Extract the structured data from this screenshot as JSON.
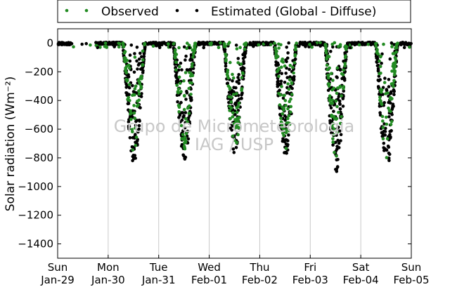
{
  "chart_data": {
    "type": "scatter",
    "title": "",
    "ylabel": "Solar radiation (Wm⁻²)",
    "xlabel": "",
    "ylim": [
      -1500,
      100
    ],
    "yticks": [
      0,
      -200,
      -400,
      -600,
      -800,
      -1000,
      -1200,
      -1400
    ],
    "xlim": [
      "Jan-29",
      "Feb-05"
    ],
    "x_ticks": [
      {
        "day": "Sun",
        "date": "Jan-29"
      },
      {
        "day": "Mon",
        "date": "Jan-30"
      },
      {
        "day": "Tue",
        "date": "Jan-31"
      },
      {
        "day": "Wed",
        "date": "Feb-01"
      },
      {
        "day": "Thu",
        "date": "Feb-02"
      },
      {
        "day": "Fri",
        "date": "Feb-03"
      },
      {
        "day": "Sat",
        "date": "Feb-04"
      },
      {
        "day": "Sun",
        "date": "Feb-05"
      }
    ],
    "grid": "vertical",
    "legend_position": "top",
    "series": [
      {
        "name": "Observed",
        "color": "#228B22"
      },
      {
        "name": "Estimated (Global - Diffuse)",
        "color": "#000000"
      }
    ],
    "daily_peaks": [
      {
        "date": "Jan-30",
        "observed_min": -760,
        "estimated_min": -850
      },
      {
        "date": "Jan-31",
        "observed_min": -740,
        "estimated_min": -810
      },
      {
        "date": "Feb-01",
        "observed_min": -730,
        "estimated_min": -780
      },
      {
        "date": "Feb-02",
        "observed_min": -740,
        "estimated_min": -800
      },
      {
        "date": "Feb-03",
        "observed_min": -800,
        "estimated_min": -900
      },
      {
        "date": "Feb-04",
        "observed_min": -800,
        "estimated_min": -890
      }
    ],
    "watermark": [
      "Grupo de Micrometeorologia",
      "IAG / USP"
    ]
  }
}
